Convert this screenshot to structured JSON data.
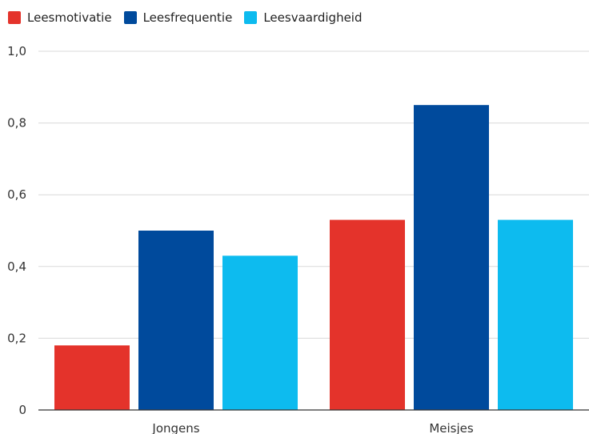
{
  "chart_data": {
    "type": "bar",
    "categories": [
      "Jongens",
      "Meisjes"
    ],
    "series": [
      {
        "name": "Leesmotivatie",
        "values": [
          0.18,
          0.53
        ],
        "color": "#e4332b"
      },
      {
        "name": "Leesfrequentie",
        "values": [
          0.5,
          0.85
        ],
        "color": "#004a9c"
      },
      {
        "name": "Leesvaardigheid",
        "values": [
          0.43,
          0.53
        ],
        "color": "#0dbbef"
      }
    ],
    "y_ticks": [
      "0",
      "0,2",
      "0,4",
      "0,6",
      "0,8",
      "1,0"
    ],
    "ylim": [
      0,
      1
    ],
    "grid": true,
    "legend_position": "top-left",
    "title": "",
    "xlabel": "",
    "ylabel": ""
  }
}
